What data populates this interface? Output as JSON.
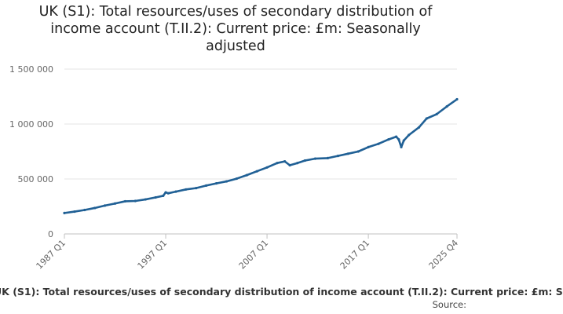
{
  "chart_data": {
    "type": "line",
    "title": "UK (S1): Total resources/uses of secondary distribution of\nincome account (T.II.2): Current price: £m: Seasonally\nadjusted",
    "xlabel": "",
    "ylabel": "",
    "ylim": [
      0,
      1500000
    ],
    "y_ticks": [
      {
        "value": 0,
        "label": "0"
      },
      {
        "value": 500000,
        "label": "500 000"
      },
      {
        "value": 1000000,
        "label": "1 000 000"
      },
      {
        "value": 1500000,
        "label": "1 500 000"
      }
    ],
    "x_ticks": [
      "1987 Q1",
      "1997 Q1",
      "2007 Q1",
      "2017 Q1",
      "2025 Q4"
    ],
    "grid": "horizontal",
    "legend": "none",
    "colors": {
      "series": "#206095"
    },
    "series": [
      {
        "name": "",
        "points": [
          {
            "x": "1987 Q1",
            "y": 190000
          },
          {
            "x": "1988 Q1",
            "y": 203000
          },
          {
            "x": "1989 Q1",
            "y": 218000
          },
          {
            "x": "1990 Q1",
            "y": 236000
          },
          {
            "x": "1991 Q1",
            "y": 258000
          },
          {
            "x": "1992 Q1",
            "y": 277000
          },
          {
            "x": "1993 Q1",
            "y": 297000
          },
          {
            "x": "1994 Q1",
            "y": 300000
          },
          {
            "x": "1995 Q1",
            "y": 314000
          },
          {
            "x": "1996 Q1",
            "y": 332000
          },
          {
            "x": "1996 Q4",
            "y": 347000
          },
          {
            "x": "1997 Q1",
            "y": 378000
          },
          {
            "x": "1997 Q2",
            "y": 370000
          },
          {
            "x": "1998 Q1",
            "y": 385000
          },
          {
            "x": "1999 Q1",
            "y": 405000
          },
          {
            "x": "2000 Q1",
            "y": 417000
          },
          {
            "x": "2001 Q1",
            "y": 440000
          },
          {
            "x": "2002 Q1",
            "y": 460000
          },
          {
            "x": "2003 Q1",
            "y": 478000
          },
          {
            "x": "2004 Q1",
            "y": 503000
          },
          {
            "x": "2005 Q1",
            "y": 535000
          },
          {
            "x": "2006 Q1",
            "y": 570000
          },
          {
            "x": "2007 Q1",
            "y": 605000
          },
          {
            "x": "2008 Q1",
            "y": 645000
          },
          {
            "x": "2008 Q4",
            "y": 660000
          },
          {
            "x": "2009 Q2",
            "y": 625000
          },
          {
            "x": "2010 Q1",
            "y": 645000
          },
          {
            "x": "2010 Q4",
            "y": 668000
          },
          {
            "x": "2011 Q4",
            "y": 685000
          },
          {
            "x": "2013 Q1",
            "y": 690000
          },
          {
            "x": "2014 Q1",
            "y": 710000
          },
          {
            "x": "2015 Q1",
            "y": 730000
          },
          {
            "x": "2016 Q1",
            "y": 750000
          },
          {
            "x": "2017 Q1",
            "y": 790000
          },
          {
            "x": "2018 Q1",
            "y": 820000
          },
          {
            "x": "2019 Q1",
            "y": 860000
          },
          {
            "x": "2019 Q4",
            "y": 885000
          },
          {
            "x": "2020 Q1",
            "y": 860000
          },
          {
            "x": "2020 Q2",
            "y": 790000
          },
          {
            "x": "2020 Q3",
            "y": 850000
          },
          {
            "x": "2021 Q1",
            "y": 900000
          },
          {
            "x": "2022 Q1",
            "y": 970000
          },
          {
            "x": "2022 Q4",
            "y": 1050000
          },
          {
            "x": "2023 Q4",
            "y": 1090000
          },
          {
            "x": "2024 Q4",
            "y": 1160000
          },
          {
            "x": "2025 Q4",
            "y": 1225000
          }
        ]
      }
    ]
  },
  "footer": {
    "series_label": "UK (S1): Total resources/uses of secondary distribution of income account (T.II.2): Current price: £m: S",
    "source_label": "Source:"
  }
}
